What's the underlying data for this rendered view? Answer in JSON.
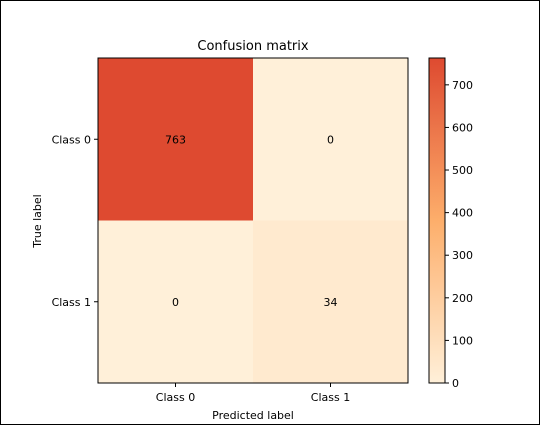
{
  "chart_data": {
    "type": "heatmap",
    "title": "Confusion matrix",
    "xlabel": "Predicted label",
    "ylabel": "True label",
    "x_categories": [
      "Class 0",
      "Class 1"
    ],
    "y_categories": [
      "Class 0",
      "Class 1"
    ],
    "values": [
      [
        763,
        0
      ],
      [
        0,
        34
      ]
    ],
    "colorbar": {
      "range": [
        0,
        763
      ],
      "ticks": [
        0,
        100,
        200,
        300,
        400,
        500,
        600,
        700
      ]
    },
    "colormap": {
      "low": "#fff0d9",
      "mid": "#fdae6b",
      "high": "#de4a30"
    },
    "grid": false
  }
}
